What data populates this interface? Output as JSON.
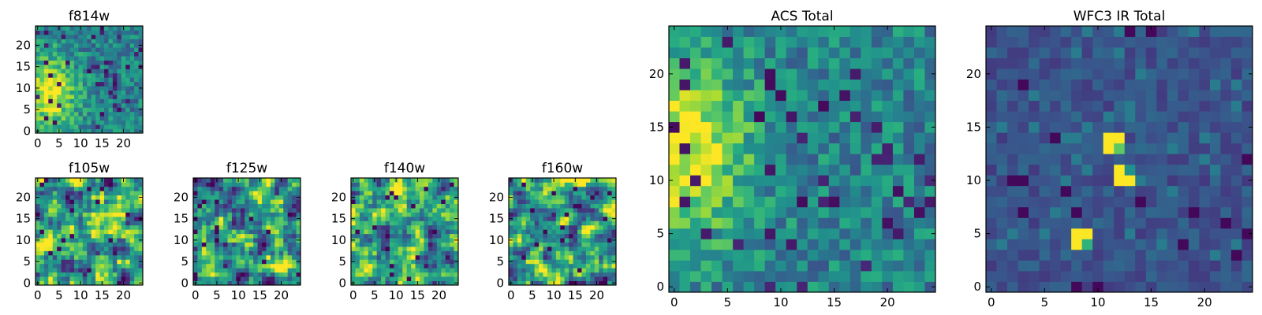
{
  "figure": {
    "title": ""
  },
  "colors": {
    "viridis": [
      "#440154",
      "#3b528b",
      "#21918c",
      "#5ec962",
      "#fde725"
    ]
  },
  "chart_data": [
    {
      "type": "heatmap",
      "title": "f814w",
      "colormap": "viridis",
      "grid_size": 25,
      "xlim": [
        0,
        24
      ],
      "ylim": [
        0,
        24
      ],
      "xticks": [
        0,
        5,
        10,
        15,
        20
      ],
      "yticks": [
        0,
        5,
        10,
        15,
        20
      ],
      "style": "noisy",
      "source_center": [
        3,
        9
      ],
      "source_sigma": 4,
      "description": "bright yellow region along the left edge around y 5-13"
    },
    {
      "type": "heatmap",
      "title": "f105w",
      "colormap": "viridis",
      "grid_size": 25,
      "xlim": [
        0,
        24
      ],
      "ylim": [
        0,
        24
      ],
      "xticks": [
        0,
        5,
        10,
        15,
        20
      ],
      "yticks": [
        0,
        5,
        10,
        15,
        20
      ],
      "style": "smooth"
    },
    {
      "type": "heatmap",
      "title": "f125w",
      "colormap": "viridis",
      "grid_size": 25,
      "xlim": [
        0,
        24
      ],
      "ylim": [
        0,
        24
      ],
      "xticks": [
        0,
        5,
        10,
        15,
        20
      ],
      "yticks": [
        0,
        5,
        10,
        15,
        20
      ],
      "style": "smooth"
    },
    {
      "type": "heatmap",
      "title": "f140w",
      "colormap": "viridis",
      "grid_size": 25,
      "xlim": [
        0,
        24
      ],
      "ylim": [
        0,
        24
      ],
      "xticks": [
        0,
        5,
        10,
        15,
        20
      ],
      "yticks": [
        0,
        5,
        10,
        15,
        20
      ],
      "style": "smooth"
    },
    {
      "type": "heatmap",
      "title": "f160w",
      "colormap": "viridis",
      "grid_size": 25,
      "xlim": [
        0,
        24
      ],
      "ylim": [
        0,
        24
      ],
      "xticks": [
        0,
        5,
        10,
        15,
        20
      ],
      "yticks": [
        0,
        5,
        10,
        15,
        20
      ],
      "style": "smooth"
    },
    {
      "type": "heatmap",
      "title": "ACS Total",
      "colormap": "viridis",
      "grid_size": 25,
      "xlim": [
        0,
        24
      ],
      "ylim": [
        0,
        24
      ],
      "xticks": [
        0,
        5,
        10,
        15,
        20
      ],
      "yticks": [
        0,
        5,
        10,
        15,
        20
      ],
      "style": "noisy",
      "source_center": [
        1,
        13
      ],
      "source_sigma": 4,
      "description": "bright yellow region along the left edge around y 9-16"
    },
    {
      "type": "heatmap",
      "title": "WFC3 IR Total",
      "colormap": "viridis",
      "grid_size": 25,
      "xlim": [
        0,
        24
      ],
      "ylim": [
        0,
        24
      ],
      "xticks": [
        0,
        5,
        10,
        15,
        20
      ],
      "yticks": [
        0,
        5,
        10,
        15,
        20
      ],
      "style": "dark",
      "hot_pixels": [
        [
          11,
          13
        ],
        [
          11,
          14
        ],
        [
          12,
          13
        ],
        [
          12,
          14
        ],
        [
          12,
          11
        ],
        [
          13,
          11
        ],
        [
          12,
          10
        ],
        [
          13,
          10
        ],
        [
          8,
          5
        ],
        [
          9,
          5
        ],
        [
          8,
          4
        ],
        [
          9,
          4
        ]
      ],
      "description": "mostly dark blue with bright spots near (12,11), (11,14) and (8,5)"
    }
  ]
}
